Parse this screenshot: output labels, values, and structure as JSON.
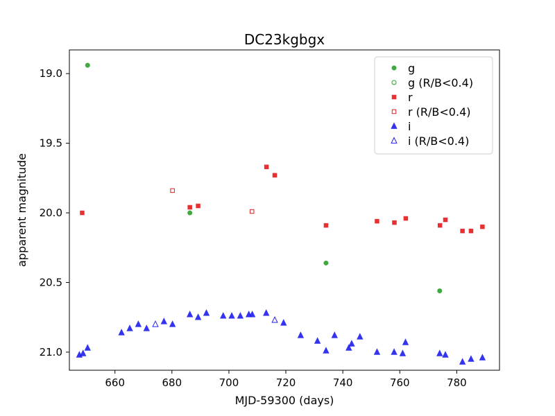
{
  "chart_data": {
    "type": "scatter",
    "title": "DC23kgbgx",
    "xlabel": "MJD-59300 (days)",
    "ylabel": "apparent magnitude",
    "xlim": [
      644,
      795
    ],
    "ylim": [
      21.13,
      18.83
    ],
    "y_inverted": true,
    "grid": false,
    "legend_position": "top-right",
    "x_ticks": [
      660,
      680,
      700,
      720,
      740,
      760,
      780
    ],
    "y_ticks": [
      19.0,
      19.5,
      20.0,
      20.5,
      21.0
    ],
    "x_tick_labels": [
      "660",
      "680",
      "700",
      "720",
      "740",
      "760",
      "780"
    ],
    "y_tick_labels": [
      "19.0",
      "19.5",
      "20.0",
      "20.5",
      "21.0"
    ],
    "series": [
      {
        "name": "g",
        "marker": "circle",
        "filled": true,
        "color": "#2ca02c",
        "x": [
          650.4,
          686.3,
          734.1,
          774.0
        ],
        "y": [
          18.94,
          20.0,
          20.36,
          20.56
        ]
      },
      {
        "name": "g (R/B<0.4)",
        "marker": "circle",
        "filled": false,
        "color": "#2ca02c",
        "x": [],
        "y": []
      },
      {
        "name": "r",
        "marker": "square",
        "filled": true,
        "color": "#e41a1c",
        "x": [
          648.5,
          686.3,
          689.2,
          713.2,
          716.1,
          734.1,
          752.0,
          758.1,
          762.1,
          774.1,
          776.0,
          782.0,
          785.0,
          789.0
        ],
        "y": [
          20.0,
          19.96,
          19.95,
          19.67,
          19.73,
          20.09,
          20.06,
          20.07,
          20.04,
          20.09,
          20.05,
          20.13,
          20.13,
          20.1
        ]
      },
      {
        "name": "r (R/B<0.4)",
        "marker": "square",
        "filled": false,
        "color": "#e41a1c",
        "x": [
          680.2,
          708.1
        ],
        "y": [
          19.84,
          19.99
        ]
      },
      {
        "name": "i",
        "marker": "triangle",
        "filled": true,
        "color": "#1f1fef",
        "x": [
          647.5,
          648.8,
          650.4,
          662.3,
          665.2,
          668.2,
          671.1,
          677.2,
          680.2,
          686.3,
          689.2,
          692.1,
          698.0,
          701.0,
          704.0,
          707.0,
          708.2,
          713.1,
          719.2,
          725.2,
          731.1,
          734.1,
          737.1,
          742.1,
          743.1,
          746.0,
          752.0,
          758.0,
          761.0,
          762.0,
          774.0,
          776.0,
          782.0,
          785.0,
          789.0
        ],
        "y": [
          21.02,
          21.01,
          20.97,
          20.86,
          20.83,
          20.8,
          20.83,
          20.78,
          20.8,
          20.73,
          20.75,
          20.72,
          20.74,
          20.74,
          20.74,
          20.73,
          20.73,
          20.72,
          20.79,
          20.88,
          20.92,
          20.99,
          20.88,
          20.97,
          20.94,
          20.89,
          21.0,
          21.0,
          21.01,
          20.93,
          21.01,
          21.02,
          21.07,
          21.05,
          21.04
        ]
      },
      {
        "name": "i (R/B<0.4)",
        "marker": "triangle",
        "filled": false,
        "color": "#1f1fef",
        "x": [
          674.2,
          716.1
        ],
        "y": [
          20.8,
          20.77
        ]
      }
    ]
  }
}
